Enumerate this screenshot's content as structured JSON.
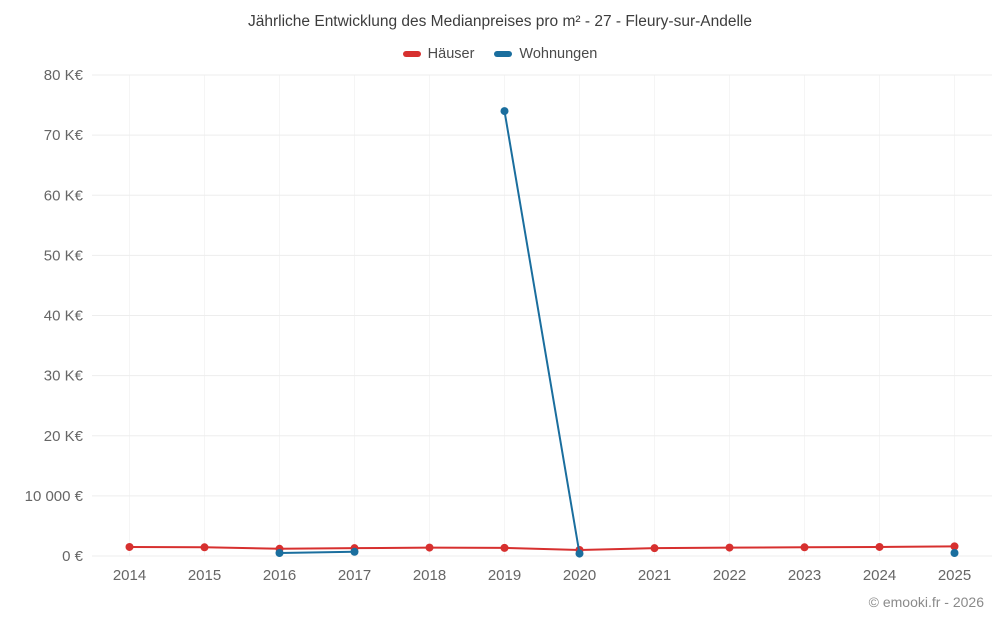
{
  "title": "Jährliche Entwicklung des Medianpreises pro m² - 27 - Fleury-sur-Andelle",
  "legend": [
    {
      "label": "Häuser",
      "color": "#d7302f"
    },
    {
      "label": "Wohnungen",
      "color": "#1a6e9e"
    }
  ],
  "copyright": "© emooki.fr - 2026",
  "colors": {
    "grid": "#ededed",
    "grid_vertical": "#f5f5f5",
    "tick_text": "#666666"
  },
  "chart_data": {
    "type": "line",
    "title": "Jährliche Entwicklung des Medianpreises pro m² - 27 - Fleury-sur-Andelle",
    "x": [
      "2014",
      "2015",
      "2016",
      "2017",
      "2018",
      "2019",
      "2020",
      "2021",
      "2022",
      "2023",
      "2024",
      "2025"
    ],
    "series": [
      {
        "name": "Häuser",
        "color": "#d7302f",
        "values": [
          1500,
          1450,
          1200,
          1300,
          1400,
          1350,
          1000,
          1300,
          1400,
          1450,
          1500,
          1600
        ]
      },
      {
        "name": "Wohnungen",
        "color": "#1a6e9e",
        "values": [
          null,
          null,
          500,
          700,
          null,
          74000,
          400,
          null,
          null,
          null,
          null,
          500
        ]
      }
    ],
    "ylim": [
      0,
      80000
    ],
    "ytick_values": [
      0,
      10000,
      20000,
      30000,
      40000,
      50000,
      60000,
      70000,
      80000
    ],
    "ytick_labels": [
      "0 €",
      "10 000 €",
      "20 K€",
      "30 K€",
      "40 K€",
      "50 K€",
      "60 K€",
      "70 K€",
      "80 K€"
    ],
    "grid": true,
    "legend_position": "top",
    "span_gaps": false
  }
}
